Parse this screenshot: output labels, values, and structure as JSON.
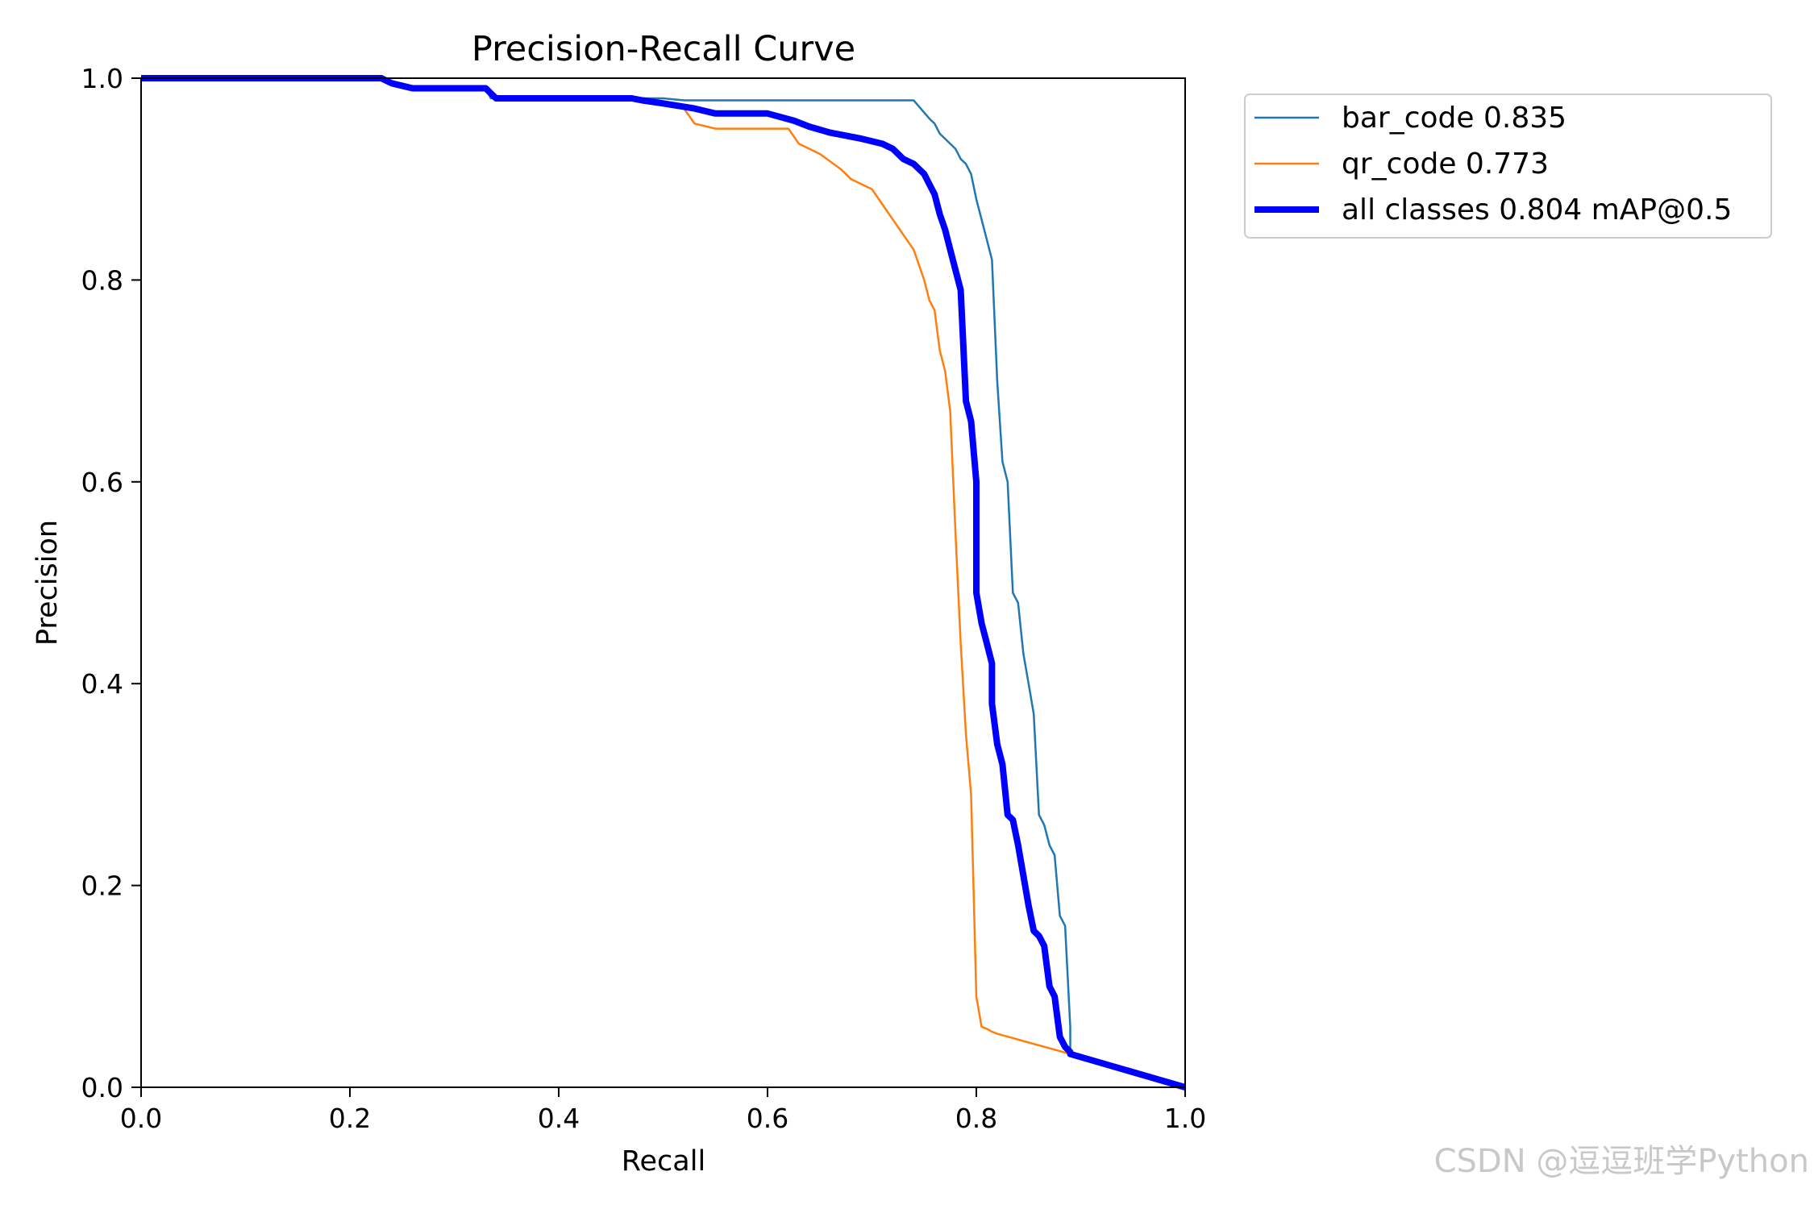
{
  "chart_data": {
    "type": "line",
    "title": "Precision-Recall Curve",
    "xlabel": "Recall",
    "ylabel": "Precision",
    "xlim": [
      0,
      1
    ],
    "ylim": [
      0,
      1
    ],
    "xticks": [
      "0.0",
      "0.2",
      "0.4",
      "0.6",
      "0.8",
      "1.0"
    ],
    "yticks": [
      "0.0",
      "0.2",
      "0.4",
      "0.6",
      "0.8",
      "1.0"
    ],
    "grid": false,
    "legend_position": "outside-top-right",
    "series": [
      {
        "name": "bar_code 0.835",
        "color": "#1f77b4",
        "x": [
          0,
          0.23,
          0.24,
          0.26,
          0.33,
          0.335,
          0.34,
          0.5,
          0.52,
          0.74,
          0.745,
          0.755,
          0.76,
          0.765,
          0.77,
          0.78,
          0.785,
          0.79,
          0.795,
          0.8,
          0.81,
          0.815,
          0.82,
          0.825,
          0.83,
          0.835,
          0.84,
          0.845,
          0.85,
          0.855,
          0.86,
          0.865,
          0.87,
          0.875,
          0.88,
          0.885,
          0.89,
          0.89,
          1.0
        ],
        "y": [
          1.0,
          1.0,
          0.995,
          0.99,
          0.99,
          0.98,
          0.98,
          0.98,
          0.978,
          0.978,
          0.972,
          0.96,
          0.955,
          0.945,
          0.94,
          0.93,
          0.92,
          0.915,
          0.905,
          0.88,
          0.84,
          0.82,
          0.7,
          0.62,
          0.6,
          0.49,
          0.48,
          0.43,
          0.4,
          0.37,
          0.27,
          0.26,
          0.24,
          0.23,
          0.17,
          0.16,
          0.06,
          0.035,
          0.0
        ]
      },
      {
        "name": "qr_code 0.773",
        "color": "#ff7f0e",
        "x": [
          0,
          0.23,
          0.24,
          0.26,
          0.33,
          0.335,
          0.34,
          0.48,
          0.52,
          0.53,
          0.55,
          0.62,
          0.63,
          0.65,
          0.67,
          0.68,
          0.7,
          0.71,
          0.72,
          0.73,
          0.74,
          0.745,
          0.75,
          0.755,
          0.76,
          0.765,
          0.77,
          0.775,
          0.78,
          0.785,
          0.79,
          0.795,
          0.8,
          0.805,
          0.81,
          0.815,
          0.82,
          0.89,
          1.0
        ],
        "y": [
          1.0,
          1.0,
          0.995,
          0.99,
          0.99,
          0.985,
          0.98,
          0.98,
          0.97,
          0.955,
          0.95,
          0.95,
          0.935,
          0.925,
          0.91,
          0.9,
          0.89,
          0.875,
          0.86,
          0.845,
          0.83,
          0.815,
          0.8,
          0.78,
          0.77,
          0.73,
          0.71,
          0.67,
          0.55,
          0.44,
          0.35,
          0.29,
          0.09,
          0.06,
          0.058,
          0.055,
          0.053,
          0.033,
          0.0
        ]
      },
      {
        "name": "all classes 0.804 mAP@0.5",
        "color": "#0000ff",
        "x": [
          0,
          0.23,
          0.24,
          0.26,
          0.33,
          0.335,
          0.34,
          0.47,
          0.48,
          0.5,
          0.53,
          0.55,
          0.6,
          0.625,
          0.64,
          0.66,
          0.69,
          0.71,
          0.72,
          0.73,
          0.74,
          0.75,
          0.755,
          0.76,
          0.765,
          0.77,
          0.775,
          0.78,
          0.785,
          0.79,
          0.795,
          0.8,
          0.8,
          0.805,
          0.81,
          0.815,
          0.815,
          0.82,
          0.825,
          0.83,
          0.835,
          0.84,
          0.845,
          0.85,
          0.855,
          0.86,
          0.865,
          0.87,
          0.875,
          0.88,
          0.885,
          0.89,
          0.89,
          1.0
        ],
        "y": [
          1.0,
          1.0,
          0.995,
          0.99,
          0.99,
          0.985,
          0.98,
          0.98,
          0.978,
          0.975,
          0.97,
          0.965,
          0.965,
          0.958,
          0.952,
          0.946,
          0.94,
          0.935,
          0.93,
          0.92,
          0.915,
          0.905,
          0.895,
          0.885,
          0.865,
          0.85,
          0.83,
          0.81,
          0.79,
          0.68,
          0.66,
          0.6,
          0.49,
          0.46,
          0.44,
          0.42,
          0.38,
          0.34,
          0.32,
          0.27,
          0.265,
          0.24,
          0.21,
          0.18,
          0.155,
          0.15,
          0.14,
          0.1,
          0.09,
          0.05,
          0.04,
          0.035,
          0.033,
          0.0
        ]
      }
    ]
  },
  "watermark": "CSDN @逗逗班学Python"
}
